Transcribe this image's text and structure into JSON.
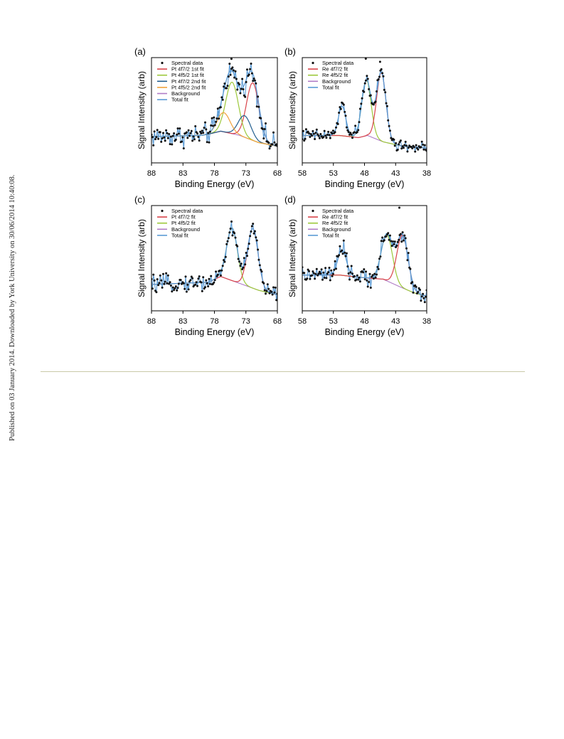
{
  "watermark": "Published on 03 January 2014. Downloaded by York University on 30/06/2014 10:40:08.",
  "colors": {
    "spectral": "#111111",
    "fit1": "#d9434a",
    "fit2": "#9cc83a",
    "fit3": "#225e8f",
    "fit4": "#f0a23c",
    "background": "#b07cc6",
    "total": "#5b9bd5",
    "axis": "#000000"
  },
  "chart_data": [
    {
      "type": "scatter",
      "panel_label": "(a)",
      "xlabel": "Binding Energy (eV)",
      "ylabel": "Signal Intensity (arb)",
      "xlim": [
        88,
        68
      ],
      "x_reversed": true,
      "xticks": [
        88,
        83,
        78,
        73,
        68
      ],
      "xtick_labels": [
        "88",
        "83",
        "78",
        "73",
        "68"
      ],
      "y_ticks_shown": false,
      "legend_position": "top-left",
      "legend": [
        {
          "label": "Spectral data",
          "marker": "dot",
          "color": "#111111"
        },
        {
          "label": "Pt 4f7/2 1st fit",
          "marker": "line",
          "color": "#d9434a"
        },
        {
          "label": "Pt 4f5/2 1st fit",
          "marker": "line",
          "color": "#9cc83a"
        },
        {
          "label": "Pt 4f7/2 2nd fit",
          "marker": "line",
          "color": "#225e8f"
        },
        {
          "label": "Pt 4f5/2 2nd fit",
          "marker": "line",
          "color": "#f0a23c"
        },
        {
          "label": "Background",
          "marker": "line",
          "color": "#b07cc6"
        },
        {
          "label": "Total fit",
          "marker": "line",
          "color": "#5b9bd5"
        }
      ],
      "background": [
        [
          88,
          0.08
        ],
        [
          80,
          0.09
        ],
        [
          79,
          0.1
        ],
        [
          77,
          0.125
        ],
        [
          74,
          0.09
        ],
        [
          71,
          0.03
        ],
        [
          68,
          0.0
        ]
      ],
      "peaks": [
        {
          "name": "Pt 4f7/2 1st fit",
          "center": 71.9,
          "height": 0.48,
          "width": 1.0,
          "color": "#d9434a"
        },
        {
          "name": "Pt 4f5/2 1st fit",
          "center": 75.2,
          "height": 0.43,
          "width": 1.0,
          "color": "#9cc83a"
        },
        {
          "name": "Pt 4f7/2 2nd fit",
          "center": 73.2,
          "height": 0.18,
          "width": 1.0,
          "color": "#225e8f"
        },
        {
          "name": "Pt 4f5/2 2nd fit",
          "center": 76.5,
          "height": 0.16,
          "width": 1.0,
          "color": "#f0a23c"
        }
      ],
      "ylim": [
        -0.14,
        0.74
      ],
      "noise": 0.045,
      "points": 130,
      "outliers": [
        [
          75.3,
          0.73
        ],
        [
          72.0,
          0.76
        ]
      ]
    },
    {
      "type": "scatter",
      "panel_label": "(b)",
      "xlabel": "Binding Energy (eV)",
      "ylabel": "Signal Intensity (arb)",
      "xlim": [
        58,
        38
      ],
      "x_reversed": true,
      "xticks": [
        58,
        53,
        48,
        43,
        38
      ],
      "xtick_labels": [
        "58",
        "53",
        "48",
        "43",
        "38"
      ],
      "y_ticks_shown": false,
      "legend_position": "top-left",
      "legend": [
        {
          "label": "Spectral data",
          "marker": "dot",
          "color": "#111111"
        },
        {
          "label": "Re 4f7/2 fit",
          "marker": "line",
          "color": "#d9434a"
        },
        {
          "label": "Re 4f5/2 fit",
          "marker": "line",
          "color": "#9cc83a"
        },
        {
          "label": "Background",
          "marker": "line",
          "color": "#b07cc6"
        },
        {
          "label": "Total fit",
          "marker": "line",
          "color": "#5b9bd5"
        }
      ],
      "background": [
        [
          58,
          0.12
        ],
        [
          52,
          0.12
        ],
        [
          49,
          0.1
        ],
        [
          47.5,
          0.12
        ],
        [
          45,
          0.06
        ],
        [
          42,
          0.02
        ],
        [
          38,
          0.0
        ]
      ],
      "peaks": [
        {
          "name": "Re 4f5/2 fit",
          "center": 47.7,
          "height": 0.53,
          "width": 0.75,
          "color": "#9cc83a"
        },
        {
          "name": "Re 4f7/2 fit",
          "center": 45.3,
          "height": 0.65,
          "width": 0.75,
          "color": "#d9434a"
        },
        {
          "name": "",
          "center": 51.6,
          "height": 0.28,
          "width": 0.6,
          "color": "#5b9bd5",
          "hidden": true
        }
      ],
      "ylim": [
        -0.14,
        0.86
      ],
      "noise": 0.03,
      "points": 130,
      "outliers": [
        [
          47.8,
          0.85
        ],
        [
          45.5,
          0.82
        ]
      ]
    },
    {
      "type": "scatter",
      "panel_label": "(c)",
      "xlabel": "Binding Energy (eV)",
      "ylabel": "Signal Intensity (arb)",
      "xlim": [
        88,
        68
      ],
      "x_reversed": true,
      "xticks": [
        88,
        83,
        78,
        73,
        68
      ],
      "xtick_labels": [
        "88",
        "83",
        "78",
        "73",
        "68"
      ],
      "y_ticks_shown": false,
      "legend_position": "top-left",
      "legend": [
        {
          "label": "Spectral data",
          "marker": "dot",
          "color": "#111111"
        },
        {
          "label": "Pt 4f7/2 fit",
          "marker": "line",
          "color": "#d9434a"
        },
        {
          "label": "Pt 4f5/2 fit",
          "marker": "line",
          "color": "#9cc83a"
        },
        {
          "label": "Background",
          "marker": "line",
          "color": "#b07cc6"
        },
        {
          "label": "Total fit",
          "marker": "line",
          "color": "#5b9bd5"
        }
      ],
      "background": [
        [
          88,
          0.09
        ],
        [
          79,
          0.11
        ],
        [
          77,
          0.16
        ],
        [
          74,
          0.1
        ],
        [
          71,
          0.04
        ],
        [
          68,
          0.0
        ]
      ],
      "peaks": [
        {
          "name": "Pt 4f5/2 fit",
          "center": 75.2,
          "height": 0.46,
          "width": 0.85,
          "color": "#9cc83a"
        },
        {
          "name": "Pt 4f7/2 fit",
          "center": 71.9,
          "height": 0.52,
          "width": 0.85,
          "color": "#d9434a"
        }
      ],
      "ylim": [
        -0.14,
        0.78
      ],
      "noise": 0.035,
      "points": 130,
      "outliers": []
    },
    {
      "type": "scatter",
      "panel_label": "(d)",
      "xlabel": "Binding Energy (eV)",
      "ylabel": "Signal Intensity (arb)",
      "xlim": [
        58,
        38
      ],
      "x_reversed": true,
      "xticks": [
        58,
        53,
        48,
        43,
        38
      ],
      "xtick_labels": [
        "58",
        "53",
        "48",
        "43",
        "38"
      ],
      "y_ticks_shown": false,
      "legend_position": "top-left",
      "legend": [
        {
          "label": "Spectral data",
          "marker": "dot",
          "color": "#111111"
        },
        {
          "label": "Re 4f7/2 fit",
          "marker": "line",
          "color": "#d9434a"
        },
        {
          "label": "Re 4f5/2 fit",
          "marker": "line",
          "color": "#9cc83a"
        },
        {
          "label": "Background",
          "marker": "line",
          "color": "#b07cc6"
        },
        {
          "label": "Total fit",
          "marker": "line",
          "color": "#5b9bd5"
        }
      ],
      "background": [
        [
          58,
          0.2
        ],
        [
          52,
          0.2
        ],
        [
          49,
          0.18
        ],
        [
          45,
          0.16
        ],
        [
          42,
          0.08
        ],
        [
          40,
          0.03
        ],
        [
          38,
          0.0
        ]
      ],
      "peaks": [
        {
          "name": "Re 4f5/2 fit",
          "center": 44.4,
          "height": 0.44,
          "width": 0.9,
          "color": "#9cc83a"
        },
        {
          "name": "Re 4f7/2 fit",
          "center": 41.9,
          "height": 0.5,
          "width": 0.9,
          "color": "#d9434a"
        },
        {
          "name": "",
          "center": 51.6,
          "height": 0.24,
          "width": 0.7,
          "color": "#5b9bd5",
          "hidden": true
        }
      ],
      "ylim": [
        -0.14,
        0.86
      ],
      "noise": 0.04,
      "points": 130,
      "outliers": [
        [
          42.4,
          0.84
        ]
      ]
    }
  ]
}
